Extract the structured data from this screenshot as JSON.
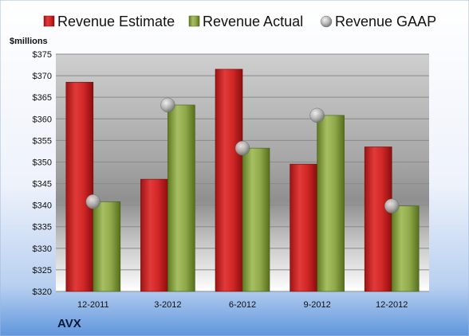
{
  "chart_data": {
    "type": "bar",
    "ticker": "AVX",
    "unit_label": "$millions",
    "categories": [
      "12-2011",
      "3-2012",
      "6-2012",
      "9-2012",
      "12-2012"
    ],
    "series": [
      {
        "name": "Revenue Estimate",
        "kind": "bar",
        "color": "#d42a2a",
        "values": [
          368.5,
          346.0,
          371.5,
          349.5,
          353.5
        ]
      },
      {
        "name": "Revenue Actual",
        "kind": "bar",
        "color": "#8fa84a",
        "values": [
          340.8,
          363.2,
          353.2,
          360.8,
          339.8
        ]
      },
      {
        "name": "Revenue GAAP",
        "kind": "marker",
        "color": "#b8b8b8",
        "values": [
          340.8,
          363.2,
          353.2,
          360.8,
          339.8
        ]
      }
    ],
    "ylim": [
      320,
      375
    ],
    "yticks": [
      320,
      325,
      330,
      335,
      340,
      345,
      350,
      355,
      360,
      365,
      370,
      375
    ],
    "ytick_labels": [
      "$320",
      "$325",
      "$330",
      "$335",
      "$340",
      "$345",
      "$350",
      "$355",
      "$360",
      "$365",
      "$370",
      "$375"
    ],
    "legend_position": "top",
    "grid": true
  }
}
